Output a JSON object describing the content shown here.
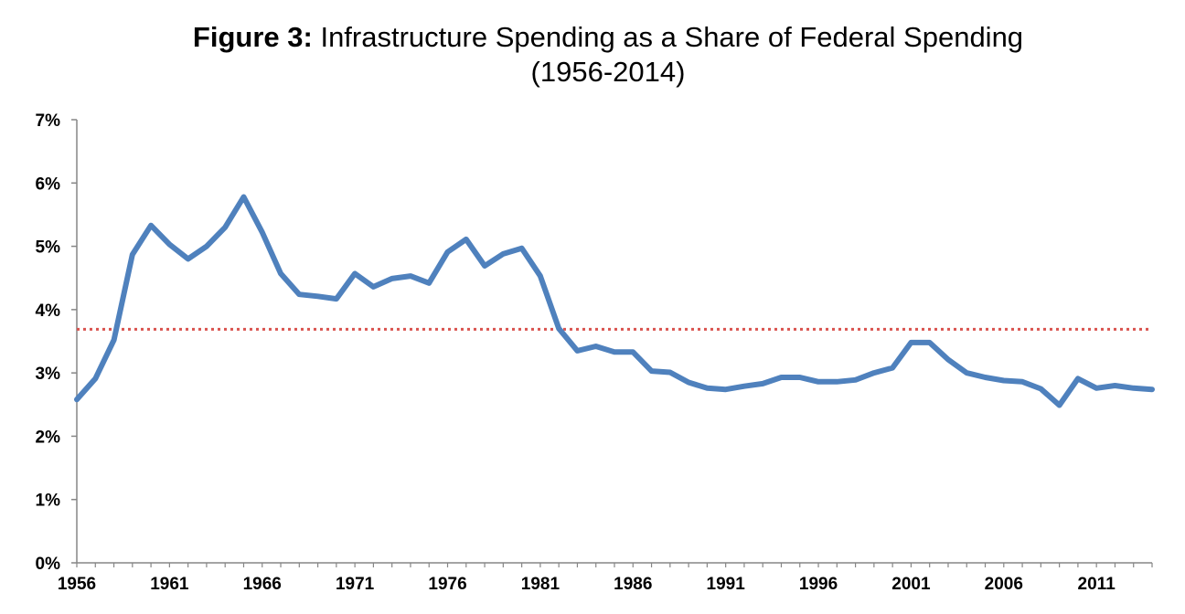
{
  "chart_data": {
    "type": "line",
    "title_prefix": "Figure 3:",
    "title": "Infrastructure Spending as a Share of Federal Spending",
    "subtitle": "(1956-2014)",
    "xlabel": "",
    "ylabel": "",
    "xlim": [
      1956,
      2014
    ],
    "ylim": [
      0,
      7
    ],
    "y_ticks": [
      "0%",
      "1%",
      "2%",
      "3%",
      "4%",
      "5%",
      "6%",
      "7%"
    ],
    "x_ticks": [
      "1956",
      "1961",
      "1966",
      "1971",
      "1976",
      "1981",
      "1986",
      "1991",
      "1996",
      "2001",
      "2006",
      "2011"
    ],
    "grid": false,
    "legend": "none",
    "series": [
      {
        "color": "#4f81bd",
        "x": [
          1956,
          1957,
          1958,
          1959,
          1960,
          1961,
          1962,
          1963,
          1964,
          1965,
          1966,
          1967,
          1968,
          1969,
          1970,
          1971,
          1972,
          1973,
          1974,
          1975,
          1976,
          1977,
          1978,
          1979,
          1980,
          1981,
          1982,
          1983,
          1984,
          1985,
          1986,
          1987,
          1988,
          1989,
          1990,
          1991,
          1992,
          1993,
          1994,
          1995,
          1996,
          1997,
          1998,
          1999,
          2000,
          2001,
          2002,
          2003,
          2004,
          2005,
          2006,
          2007,
          2008,
          2009,
          2010,
          2011,
          2012,
          2013,
          2014
        ],
        "values": [
          2.58,
          2.91,
          3.52,
          4.87,
          5.33,
          5.03,
          4.8,
          5.0,
          5.3,
          5.78,
          5.22,
          4.57,
          4.24,
          4.21,
          4.17,
          4.57,
          4.36,
          4.49,
          4.53,
          4.42,
          4.91,
          5.11,
          4.69,
          4.88,
          4.97,
          4.53,
          3.7,
          3.35,
          3.42,
          3.33,
          3.33,
          3.03,
          3.01,
          2.85,
          2.76,
          2.74,
          2.79,
          2.83,
          2.93,
          2.93,
          2.86,
          2.86,
          2.89,
          3.0,
          3.08,
          3.48,
          3.48,
          3.21,
          3.0,
          2.93,
          2.88,
          2.86,
          2.75,
          2.49,
          2.91,
          2.76,
          2.8,
          2.76,
          2.74
        ]
      }
    ],
    "reference_line": {
      "value": 3.69,
      "color": "#d9534f",
      "style": "dotted"
    }
  }
}
